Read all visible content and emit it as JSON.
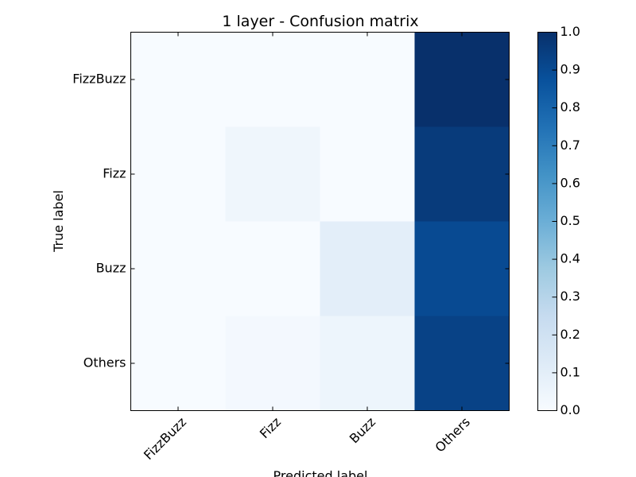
{
  "chart_data": {
    "type": "heatmap",
    "title": "1 layer - Confusion matrix",
    "xlabel": "Predicted label",
    "ylabel": "True label",
    "x_categories": [
      "FizzBuzz",
      "Fizz",
      "Buzz",
      "Others"
    ],
    "y_categories": [
      "FizzBuzz",
      "Fizz",
      "Buzz",
      "Others"
    ],
    "values": [
      [
        0.0,
        0.0,
        0.0,
        1.0
      ],
      [
        0.0,
        0.04,
        0.0,
        0.96
      ],
      [
        0.0,
        0.0,
        0.1,
        0.9
      ],
      [
        0.0,
        0.02,
        0.05,
        0.93
      ]
    ],
    "colormap": "Blues",
    "colorbar": {
      "range": [
        0.0,
        1.0
      ],
      "ticks": [
        "0.0",
        "0.1",
        "0.2",
        "0.3",
        "0.4",
        "0.5",
        "0.6",
        "0.7",
        "0.8",
        "0.9",
        "1.0"
      ]
    },
    "x_tick_rotation": "45 degrees"
  }
}
